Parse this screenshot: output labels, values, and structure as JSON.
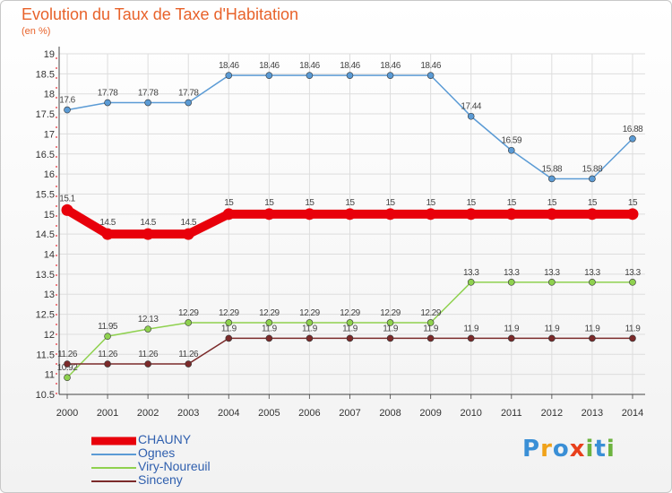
{
  "chart_data": {
    "type": "line",
    "title": "Evolution du Taux de Taxe d'Habitation",
    "subtitle": "(en %)",
    "x": [
      "2000",
      "2001",
      "2002",
      "2003",
      "2004",
      "2005",
      "2006",
      "2007",
      "2008",
      "2009",
      "2010",
      "2011",
      "2012",
      "2013",
      "2014"
    ],
    "ylim": [
      10.5,
      19
    ],
    "yticks": [
      "10.5",
      "11",
      "11.5",
      "12",
      "12.5",
      "13",
      "13.5",
      "14",
      "14.5",
      "15",
      "15.5",
      "16",
      "16.5",
      "17",
      "17.5",
      "18",
      "18.5",
      "19"
    ],
    "grid": true,
    "legend_position": "bottom-left",
    "series": [
      {
        "name": "CHAUNY",
        "color": "#e8000b",
        "style": "thick",
        "values": [
          15.1,
          14.5,
          14.5,
          14.5,
          15,
          15,
          15,
          15,
          15,
          15,
          15,
          15,
          15,
          15,
          15
        ],
        "labels": [
          "15.1",
          "14.5",
          "14.5",
          "14.5",
          "15",
          "15",
          "15",
          "15",
          "15",
          "15",
          "15",
          "15",
          "15",
          "15",
          "15"
        ]
      },
      {
        "name": "Ognes",
        "color": "#5b9bd5",
        "style": "thin",
        "values": [
          17.6,
          17.78,
          17.78,
          17.78,
          18.46,
          18.46,
          18.46,
          18.46,
          18.46,
          18.46,
          17.44,
          16.59,
          15.88,
          15.88,
          16.88
        ],
        "labels": [
          "17.6",
          "17.78",
          "17.78",
          "17.78",
          "18.46",
          "18.46",
          "18.46",
          "18.46",
          "18.46",
          "18.46",
          "17.44",
          "16.59",
          "15.88",
          "15.88",
          "16.88"
        ]
      },
      {
        "name": "Viry-Noureuil",
        "color": "#8fd14f",
        "style": "thin",
        "values": [
          10.92,
          11.95,
          12.13,
          12.29,
          12.29,
          12.29,
          12.29,
          12.29,
          12.29,
          12.29,
          13.3,
          13.3,
          13.3,
          13.3,
          13.3
        ],
        "labels": [
          "10.92",
          "11.95",
          "12.13",
          "12.29",
          "12.29",
          "12.29",
          "12.29",
          "12.29",
          "12.29",
          "12.29",
          "13.3",
          "13.3",
          "13.3",
          "13.3",
          "13.3"
        ]
      },
      {
        "name": "Sinceny",
        "color": "#7b2a2a",
        "style": "thin",
        "values": [
          11.26,
          11.26,
          11.26,
          11.26,
          11.9,
          11.9,
          11.9,
          11.9,
          11.9,
          11.9,
          11.9,
          11.9,
          11.9,
          11.9,
          11.9
        ],
        "labels": [
          "11.26",
          "11.26",
          "11.26",
          "11.26",
          "11.9",
          "11.9",
          "11.9",
          "11.9",
          "11.9",
          "11.9",
          "11.9",
          "11.9",
          "11.9",
          "11.9",
          "11.9"
        ]
      }
    ]
  },
  "logo": {
    "letters": [
      "P",
      "r",
      "o",
      "x",
      "i",
      "t",
      "i"
    ],
    "colors": [
      "#3a8fd6",
      "#f0a21a",
      "#3a8fd6",
      "#e8401c",
      "#6cb33f",
      "#3a8fd6",
      "#6cb33f"
    ]
  }
}
